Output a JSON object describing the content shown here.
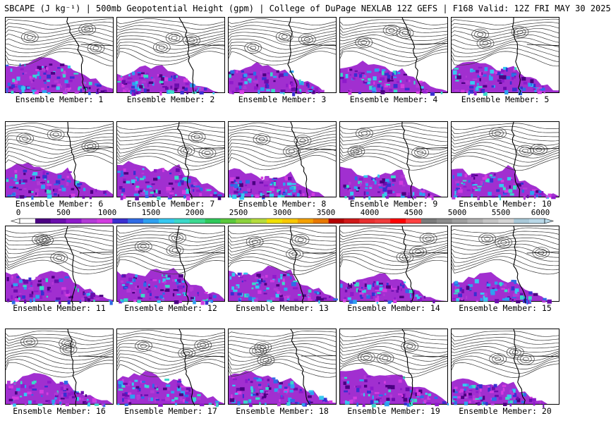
{
  "header": {
    "title": "SBCAPE (J kg⁻¹) | 500mb Geopotential Height (gpm) | College of DuPage NEXLAB 12Z GEFS | F168 Valid: 12Z FRI MAY 30 2025"
  },
  "colorbar": {
    "labels": [
      "0",
      "500",
      "1000",
      "1500",
      "2000",
      "2500",
      "3000",
      "3500",
      "4000",
      "4500",
      "5000",
      "5500",
      "6000"
    ],
    "colors": [
      "#ffffff",
      "#4b0082",
      "#6a0dad",
      "#8e1acb",
      "#b23ad6",
      "#d23ce0",
      "#3a2fd0",
      "#2f6be6",
      "#2ea0f0",
      "#36c8f0",
      "#3ad8c8",
      "#3cd890",
      "#2fc85a",
      "#5ac83c",
      "#8cd23c",
      "#b4dc3c",
      "#f0e000",
      "#f8c800",
      "#f4a000",
      "#e87800",
      "#b40000",
      "#d01818",
      "#e83030",
      "#f03c3c",
      "#ff0000",
      "#ff4040",
      "#7a7a7a",
      "#8c8c8c",
      "#9e9e9e",
      "#b0b0b0",
      "#c4c4c4",
      "#d4d4d4",
      "#a8c8d8",
      "#b8d8e8"
    ]
  },
  "panels": [
    {
      "label": "Ensemble Member: 1"
    },
    {
      "label": "Ensemble Member: 2"
    },
    {
      "label": "Ensemble Member: 3"
    },
    {
      "label": "Ensemble Member: 4"
    },
    {
      "label": "Ensemble Member: 5"
    },
    {
      "label": "Ensemble Member: 6"
    },
    {
      "label": "Ensemble Member: 7"
    },
    {
      "label": "Ensemble Member: 8"
    },
    {
      "label": "Ensemble Member: 9"
    },
    {
      "label": "Ensemble Member: 10"
    },
    {
      "label": "Ensemble Member: 11"
    },
    {
      "label": "Ensemble Member: 12"
    },
    {
      "label": "Ensemble Member: 13"
    },
    {
      "label": "Ensemble Member: 14"
    },
    {
      "label": "Ensemble Member: 15"
    },
    {
      "label": "Ensemble Member: 16"
    },
    {
      "label": "Ensemble Member: 17"
    },
    {
      "label": "Ensemble Member: 18"
    },
    {
      "label": "Ensemble Member: 19"
    },
    {
      "label": "Ensemble Member: 20"
    }
  ]
}
